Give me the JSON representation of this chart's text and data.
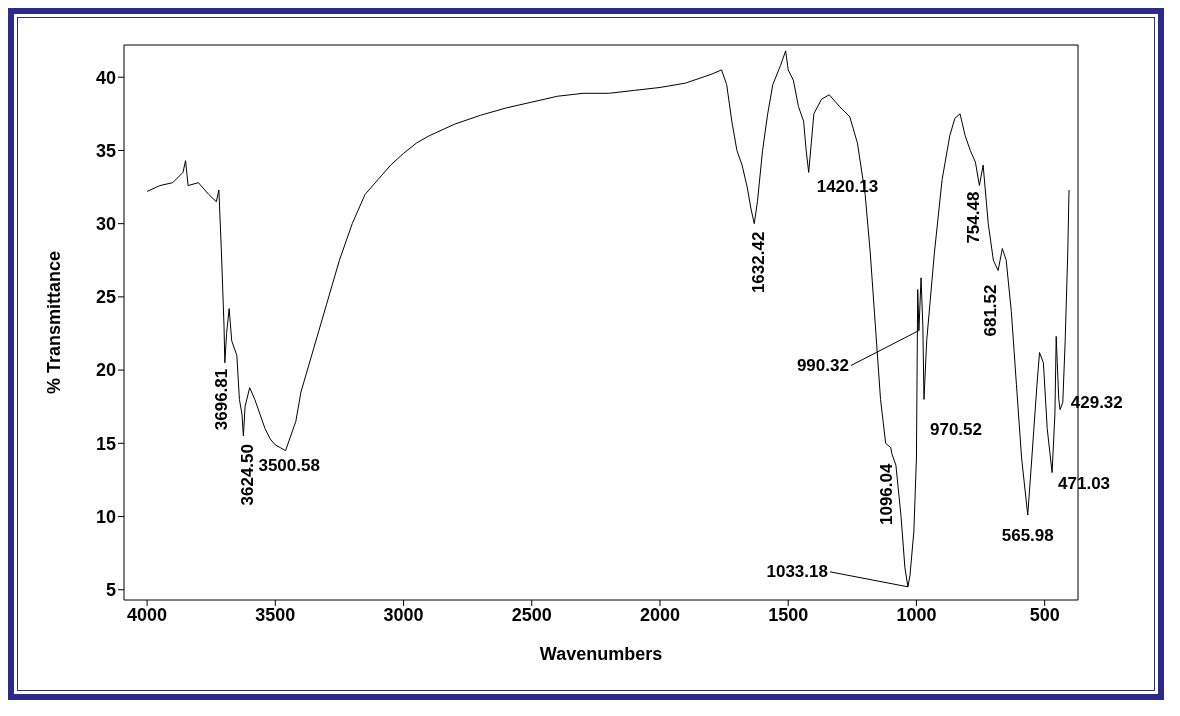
{
  "chart_data": {
    "type": "line",
    "xlabel": "Wavenumbers",
    "ylabel": "% Transmittance",
    "xlim": [
      4090,
      370
    ],
    "xticks": [
      4000,
      3500,
      3000,
      2500,
      2000,
      1500,
      1000,
      500
    ],
    "ylim": [
      4.3,
      42.2
    ],
    "yticks": [
      5,
      10,
      15,
      20,
      25,
      30,
      35,
      40
    ],
    "grid": false,
    "legend": false,
    "marker": "none",
    "line_style": "solid",
    "series": [
      {
        "color": "#000000",
        "x": [
          4000,
          3950,
          3900,
          3860,
          3850,
          3840,
          3800,
          3760,
          3730,
          3720,
          3710,
          3700,
          3696.81,
          3690,
          3680,
          3670,
          3650,
          3640,
          3630,
          3624.5,
          3618,
          3600,
          3580,
          3560,
          3540,
          3520,
          3500.58,
          3480,
          3460,
          3440,
          3420,
          3400,
          3350,
          3300,
          3250,
          3200,
          3150,
          3100,
          3050,
          3000,
          2950,
          2900,
          2800,
          2700,
          2600,
          2500,
          2400,
          2300,
          2200,
          2100,
          2000,
          1900,
          1800,
          1760,
          1740,
          1720,
          1700,
          1680,
          1660,
          1645,
          1632.42,
          1620,
          1600,
          1580,
          1560,
          1530,
          1510,
          1500,
          1480,
          1460,
          1440,
          1430,
          1420.13,
          1410,
          1400,
          1370,
          1340,
          1300,
          1260,
          1230,
          1200,
          1180,
          1160,
          1140,
          1120,
          1100,
          1096.04,
          1080,
          1060,
          1045,
          1033.18,
          1025,
          1010,
          1000,
          995,
          990.32,
          982,
          975,
          970.52,
          960,
          930,
          900,
          870,
          850,
          830,
          810,
          790,
          770,
          754.48,
          740,
          720,
          700,
          681.52,
          665,
          650,
          630,
          610,
          590,
          565.98,
          550,
          530,
          520,
          505,
          490,
          471.03,
          460,
          455,
          445,
          440,
          429.32,
          420,
          410,
          405
        ],
        "values": [
          32.2,
          32.6,
          32.8,
          33.5,
          34.3,
          32.6,
          32.8,
          32.0,
          31.5,
          32.3,
          28,
          23,
          20.5,
          22.5,
          24.2,
          22,
          21,
          18,
          17,
          15.5,
          17.5,
          18.8,
          18,
          17,
          16,
          15.3,
          14.9,
          14.7,
          14.5,
          15.5,
          16.5,
          18.5,
          21.5,
          24.5,
          27.5,
          30,
          32,
          33,
          34,
          34.8,
          35.5,
          36,
          36.8,
          37.4,
          37.9,
          38.3,
          38.7,
          38.9,
          38.9,
          39.1,
          39.3,
          39.6,
          40.2,
          40.5,
          39.5,
          37,
          35,
          34,
          32.5,
          31,
          30,
          31.5,
          35,
          37.5,
          39.5,
          40.8,
          41.8,
          40.5,
          39.8,
          38,
          37,
          35,
          33.5,
          35.5,
          37.5,
          38.5,
          38.8,
          38,
          37.3,
          35.5,
          32,
          28,
          23,
          18,
          15,
          14.7,
          14.3,
          13.5,
          10,
          6.5,
          5.2,
          6,
          9,
          14,
          25.5,
          22.7,
          26.3,
          23,
          18,
          22,
          28,
          33,
          36,
          37.2,
          37.5,
          36,
          35,
          34.2,
          32.6,
          34,
          30,
          27.5,
          26.8,
          28.3,
          27.5,
          24,
          19,
          14,
          10.1,
          14,
          19,
          21.2,
          20.5,
          16,
          13,
          17,
          22.3,
          18,
          17.3,
          17.8,
          22,
          28,
          32.3
        ]
      }
    ],
    "annotations": [
      {
        "text": "3696.81",
        "x": 3696.81,
        "y": 20.5
      },
      {
        "text": "3624.50",
        "x": 3624.5,
        "y": 15.5
      },
      {
        "text": "3500.58",
        "x": 3500.58,
        "y": 14.9
      },
      {
        "text": "1632.42",
        "x": 1632.42,
        "y": 30
      },
      {
        "text": "1420.13",
        "x": 1420.13,
        "y": 33.5
      },
      {
        "text": "1096.04",
        "x": 1096.04,
        "y": 14.3
      },
      {
        "text": "1033.18",
        "x": 1033.18,
        "y": 5.2
      },
      {
        "text": "990.32",
        "x": 990.32,
        "y": 22.7
      },
      {
        "text": "970.52",
        "x": 970.52,
        "y": 18
      },
      {
        "text": "754.48",
        "x": 754.48,
        "y": 32.6
      },
      {
        "text": "681.52",
        "x": 681.52,
        "y": 26.8
      },
      {
        "text": "565.98",
        "x": 565.98,
        "y": 10.1
      },
      {
        "text": "471.03",
        "x": 471.03,
        "y": 13
      },
      {
        "text": "429.32",
        "x": 429.32,
        "y": 17.8
      }
    ]
  }
}
